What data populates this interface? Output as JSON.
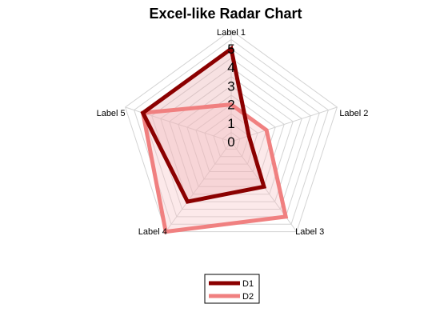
{
  "chart_data": {
    "type": "radar",
    "title": "Excel-like Radar Chart",
    "categories": [
      "Label 1",
      "Label 2",
      "Label 3",
      "Label 4",
      "Label 5"
    ],
    "rlim": [
      0,
      5
    ],
    "tick_labels": [
      "0",
      "1",
      "2",
      "3",
      "4",
      "5"
    ],
    "grid": true,
    "legend_position": "bottom",
    "series": [
      {
        "name": "D1",
        "values": [
          5,
          1,
          3,
          4,
          5
        ],
        "color": "#8b0000",
        "fill": "#e8a9ad"
      },
      {
        "name": "D2",
        "values": [
          2,
          2,
          5,
          6,
          5
        ],
        "color": "#f08080",
        "fill": "#f7c1c4"
      }
    ],
    "grid_color": "#d3d3d3"
  }
}
